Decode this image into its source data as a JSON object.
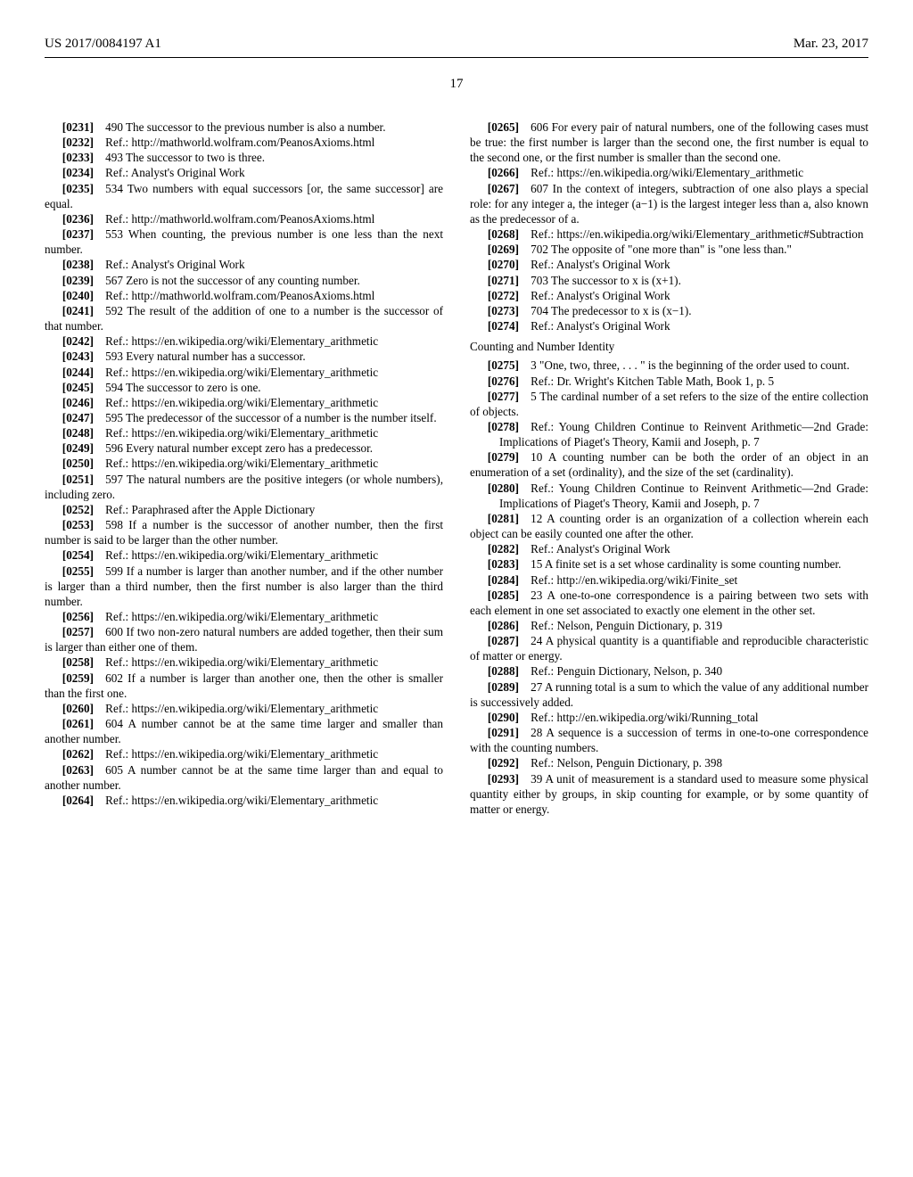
{
  "header": {
    "left": "US 2017/0084197 A1",
    "right": "Mar. 23, 2017"
  },
  "pagenum": "17",
  "section_heading": "Counting and Number Identity",
  "items": [
    {
      "n": "[0231]",
      "lvl": 0,
      "t": "490 The successor to the previous number is also a number."
    },
    {
      "n": "[0232]",
      "lvl": 1,
      "t": "Ref.: http://mathworld.wolfram.com/PeanosAxioms.html"
    },
    {
      "n": "[0233]",
      "lvl": 0,
      "t": "493 The successor to two is three."
    },
    {
      "n": "[0234]",
      "lvl": 1,
      "t": "Ref.: Analyst's Original Work"
    },
    {
      "n": "[0235]",
      "lvl": 0,
      "t": "534 Two numbers with equal successors [or, the same successor] are equal."
    },
    {
      "n": "[0236]",
      "lvl": 1,
      "t": "Ref.: http://mathworld.wolfram.com/PeanosAxioms.html"
    },
    {
      "n": "[0237]",
      "lvl": 0,
      "t": "553 When counting, the previous number is one less than the next number."
    },
    {
      "n": "[0238]",
      "lvl": 1,
      "t": "Ref.: Analyst's Original Work"
    },
    {
      "n": "[0239]",
      "lvl": 0,
      "t": "567 Zero is not the successor of any counting number."
    },
    {
      "n": "[0240]",
      "lvl": 1,
      "t": "Ref.: http://mathworld.wolfram.com/PeanosAxioms.html"
    },
    {
      "n": "[0241]",
      "lvl": 0,
      "t": "592 The result of the addition of one to a number is the successor of that number."
    },
    {
      "n": "[0242]",
      "lvl": 1,
      "t": "Ref.: https://en.wikipedia.org/wiki/Elementary_arithmetic"
    },
    {
      "n": "[0243]",
      "lvl": 0,
      "t": "593 Every natural number has a successor."
    },
    {
      "n": "[0244]",
      "lvl": 1,
      "t": "Ref.: https://en.wikipedia.org/wiki/Elementary_arithmetic"
    },
    {
      "n": "[0245]",
      "lvl": 0,
      "t": "594 The successor to zero is one."
    },
    {
      "n": "[0246]",
      "lvl": 1,
      "t": "Ref.: https://en.wikipedia.org/wiki/Elementary_arithmetic"
    },
    {
      "n": "[0247]",
      "lvl": 0,
      "t": "595 The predecessor of the successor of a number is the number itself."
    },
    {
      "n": "[0248]",
      "lvl": 1,
      "t": "Ref.: https://en.wikipedia.org/wiki/Elementary_arithmetic"
    },
    {
      "n": "[0249]",
      "lvl": 0,
      "t": "596 Every natural number except zero has a predecessor."
    },
    {
      "n": "[0250]",
      "lvl": 1,
      "t": "Ref.: https://en.wikipedia.org/wiki/Elementary_arithmetic"
    },
    {
      "n": "[0251]",
      "lvl": 0,
      "t": "597 The natural numbers are the positive integers (or whole numbers), including zero."
    },
    {
      "n": "[0252]",
      "lvl": 1,
      "t": "Ref.: Paraphrased after the Apple Dictionary"
    },
    {
      "n": "[0253]",
      "lvl": 0,
      "t": "598 If a number is the successor of another number, then the first number is said to be larger than the other number."
    },
    {
      "n": "[0254]",
      "lvl": 1,
      "t": "Ref.: https://en.wikipedia.org/wiki/Elementary_arithmetic"
    },
    {
      "n": "[0255]",
      "lvl": 0,
      "t": "599 If a number is larger than another number, and if the other number is larger than a third number, then the first number is also larger than the third number."
    },
    {
      "n": "[0256]",
      "lvl": 1,
      "t": "Ref.: https://en.wikipedia.org/wiki/Elementary_arithmetic"
    },
    {
      "n": "[0257]",
      "lvl": 0,
      "t": "600 If two non-zero natural numbers are added together, then their sum is larger than either one of them."
    },
    {
      "n": "[0258]",
      "lvl": 1,
      "t": "Ref.: https://en.wikipedia.org/wiki/Elementary_arithmetic"
    },
    {
      "n": "[0259]",
      "lvl": 0,
      "t": "602 If a number is larger than another one, then the other is smaller than the first one."
    },
    {
      "n": "[0260]",
      "lvl": 1,
      "t": "Ref.: https://en.wikipedia.org/wiki/Elementary_arithmetic"
    },
    {
      "n": "[0261]",
      "lvl": 0,
      "t": "604 A number cannot be at the same time larger and smaller than another number."
    },
    {
      "n": "[0262]",
      "lvl": 1,
      "t": "Ref.: https://en.wikipedia.org/wiki/Elementary_arithmetic"
    },
    {
      "n": "[0263]",
      "lvl": 0,
      "t": "605 A number cannot be at the same time larger than and equal to another number."
    },
    {
      "n": "[0264]",
      "lvl": 1,
      "t": "Ref.: https://en.wikipedia.org/wiki/Elementary_arithmetic"
    },
    {
      "n": "[0265]",
      "lvl": 0,
      "t": "606 For every pair of natural numbers, one of the following cases must be true: the first number is larger than the second one, the first number is equal to the second one, or the first number is smaller than the second one."
    },
    {
      "n": "[0266]",
      "lvl": 1,
      "t": "Ref.: https://en.wikipedia.org/wiki/Elementary_arithmetic"
    },
    {
      "n": "[0267]",
      "lvl": 0,
      "t": "607 In the context of integers, subtraction of one also plays a special role: for any integer a, the integer (a−1) is the largest integer less than a, also known as the predecessor of a."
    },
    {
      "n": "[0268]",
      "lvl": 1,
      "t": "Ref.: https://en.wikipedia.org/wiki/Elementary_arithmetic#Subtraction"
    },
    {
      "n": "[0269]",
      "lvl": 0,
      "t": "702 The opposite of \"one more than\" is \"one less than.\""
    },
    {
      "n": "[0270]",
      "lvl": 1,
      "t": "Ref.: Analyst's Original Work"
    },
    {
      "n": "[0271]",
      "lvl": 0,
      "t": "703 The successor to x is (x+1)."
    },
    {
      "n": "[0272]",
      "lvl": 1,
      "t": "Ref.: Analyst's Original Work"
    },
    {
      "n": "[0273]",
      "lvl": 0,
      "t": "704 The predecessor to x is (x−1)."
    },
    {
      "n": "[0274]",
      "lvl": 1,
      "t": "Ref.: Analyst's Original Work"
    },
    {
      "heading": true
    },
    {
      "n": "[0275]",
      "lvl": 0,
      "t": "3 \"One, two, three, . . . \" is the beginning of the order used to count."
    },
    {
      "n": "[0276]",
      "lvl": 1,
      "t": "Ref.: Dr. Wright's Kitchen Table Math, Book 1, p. 5"
    },
    {
      "n": "[0277]",
      "lvl": 0,
      "t": "5 The cardinal number of a set refers to the size of the entire collection of objects."
    },
    {
      "n": "[0278]",
      "lvl": 1,
      "t": "Ref.: Young Children Continue to Reinvent Arithmetic—2nd Grade: Implications of Piaget's Theory, Kamii and Joseph, p. 7"
    },
    {
      "n": "[0279]",
      "lvl": 0,
      "t": "10 A counting number can be both the order of an object in an enumeration of a set (ordinality), and the size of the set (cardinality)."
    },
    {
      "n": "[0280]",
      "lvl": 1,
      "t": "Ref.: Young Children Continue to Reinvent Arithmetic—2nd Grade: Implications of Piaget's Theory, Kamii and Joseph, p. 7"
    },
    {
      "n": "[0281]",
      "lvl": 0,
      "t": "12 A counting order is an organization of a collection wherein each object can be easily counted one after the other."
    },
    {
      "n": "[0282]",
      "lvl": 1,
      "t": "Ref.: Analyst's Original Work"
    },
    {
      "n": "[0283]",
      "lvl": 0,
      "t": "15 A finite set is a set whose cardinality is some counting number."
    },
    {
      "n": "[0284]",
      "lvl": 1,
      "t": "Ref.: http://en.wikipedia.org/wiki/Finite_set"
    },
    {
      "n": "[0285]",
      "lvl": 0,
      "t": "23 A one-to-one correspondence is a pairing between two sets with each element in one set associated to exactly one element in the other set."
    },
    {
      "n": "[0286]",
      "lvl": 1,
      "t": "Ref.: Nelson, Penguin Dictionary, p. 319"
    },
    {
      "n": "[0287]",
      "lvl": 0,
      "t": "24 A physical quantity is a quantifiable and reproducible characteristic of matter or energy."
    },
    {
      "n": "[0288]",
      "lvl": 1,
      "t": "Ref.: Penguin Dictionary, Nelson, p. 340"
    },
    {
      "n": "[0289]",
      "lvl": 0,
      "t": "27 A running total is a sum to which the value of any additional number is successively added."
    },
    {
      "n": "[0290]",
      "lvl": 1,
      "t": "Ref.: http://en.wikipedia.org/wiki/Running_total"
    },
    {
      "n": "[0291]",
      "lvl": 0,
      "t": "28 A sequence is a succession of terms in one-to-one correspondence with the counting numbers."
    },
    {
      "n": "[0292]",
      "lvl": 1,
      "t": "Ref.: Nelson, Penguin Dictionary, p. 398"
    },
    {
      "n": "[0293]",
      "lvl": 0,
      "t": "39 A unit of measurement is a standard used to measure some physical quantity either by groups, in skip counting for example, or by some quantity of matter or energy."
    }
  ]
}
